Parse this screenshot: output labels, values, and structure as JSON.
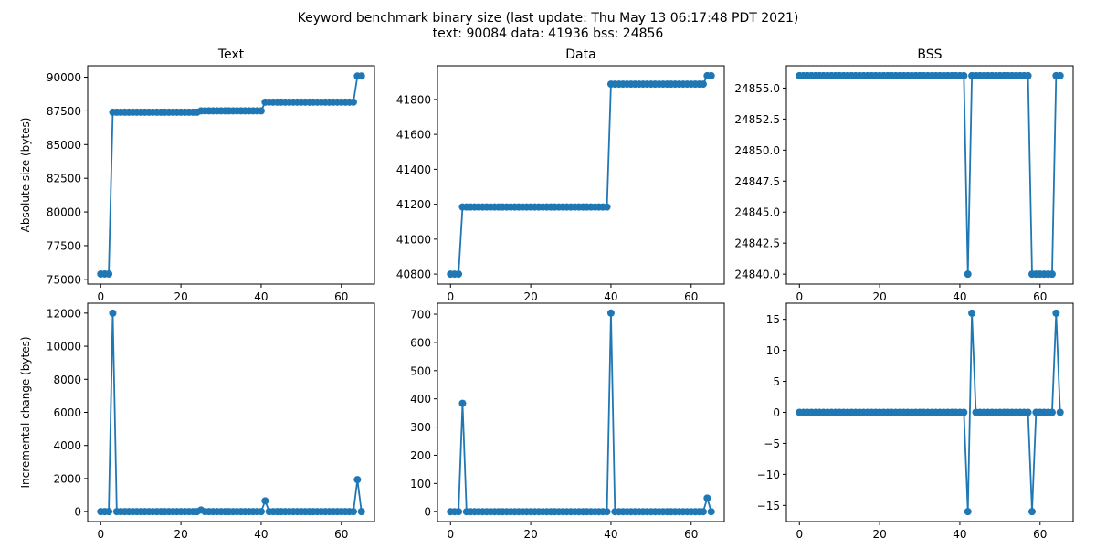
{
  "figure": {
    "title_line1": "Keyword benchmark binary size (last update: Thu May 13 06:17:48 PDT 2021)",
    "title_line2": "text: 90084 data: 41936 bss: 24856",
    "line_color": "#1f77b4"
  },
  "chart_data": [
    {
      "type": "line",
      "title": "Text",
      "xlabel": "",
      "ylabel": "Absolute size (bytes)",
      "xlim": [
        -3.25,
        68.25
      ],
      "ylim": [
        74650,
        90850
      ],
      "xticks": [
        0,
        20,
        40,
        60
      ],
      "yticks": [
        75000,
        77500,
        80000,
        82500,
        85000,
        87500,
        90000
      ],
      "ytick_labels": [
        "75000",
        "77500",
        "80000",
        "82500",
        "85000",
        "87500",
        "90000"
      ],
      "series": [
        {
          "values": [
            75400,
            75400,
            75400,
            87400,
            87400,
            87400,
            87400,
            87400,
            87400,
            87400,
            87400,
            87400,
            87400,
            87400,
            87400,
            87400,
            87400,
            87400,
            87400,
            87400,
            87400,
            87400,
            87400,
            87400,
            87400,
            87500,
            87500,
            87500,
            87500,
            87500,
            87500,
            87500,
            87500,
            87500,
            87500,
            87500,
            87500,
            87500,
            87500,
            87500,
            87500,
            88150,
            88150,
            88150,
            88150,
            88150,
            88150,
            88150,
            88150,
            88150,
            88150,
            88150,
            88150,
            88150,
            88150,
            88150,
            88150,
            88150,
            88150,
            88150,
            88150,
            88150,
            88150,
            88150,
            90084,
            90084
          ]
        }
      ]
    },
    {
      "type": "line",
      "title": "Data",
      "xlabel": "",
      "ylabel": "",
      "xlim": [
        -3.25,
        68.25
      ],
      "ylim": [
        40743,
        41993
      ],
      "xticks": [
        0,
        20,
        40,
        60
      ],
      "yticks": [
        40800,
        41000,
        41200,
        41400,
        41600,
        41800
      ],
      "ytick_labels": [
        "40800",
        "41000",
        "41200",
        "41400",
        "41600",
        "41800"
      ],
      "series": [
        {
          "values": [
            40800,
            40800,
            40800,
            41184,
            41184,
            41184,
            41184,
            41184,
            41184,
            41184,
            41184,
            41184,
            41184,
            41184,
            41184,
            41184,
            41184,
            41184,
            41184,
            41184,
            41184,
            41184,
            41184,
            41184,
            41184,
            41184,
            41184,
            41184,
            41184,
            41184,
            41184,
            41184,
            41184,
            41184,
            41184,
            41184,
            41184,
            41184,
            41184,
            41184,
            41888,
            41888,
            41888,
            41888,
            41888,
            41888,
            41888,
            41888,
            41888,
            41888,
            41888,
            41888,
            41888,
            41888,
            41888,
            41888,
            41888,
            41888,
            41888,
            41888,
            41888,
            41888,
            41888,
            41888,
            41936,
            41936
          ]
        }
      ]
    },
    {
      "type": "line",
      "title": "BSS",
      "xlabel": "",
      "ylabel": "",
      "xlim": [
        -3.25,
        68.25
      ],
      "ylim": [
        24839.2,
        24856.8
      ],
      "xticks": [
        0,
        20,
        40,
        60
      ],
      "yticks": [
        24840.0,
        24842.5,
        24845.0,
        24847.5,
        24850.0,
        24852.5,
        24855.0
      ],
      "ytick_labels": [
        "24840.0",
        "24842.5",
        "24845.0",
        "24847.5",
        "24850.0",
        "24852.5",
        "24855.0"
      ],
      "series": [
        {
          "values": [
            24856,
            24856,
            24856,
            24856,
            24856,
            24856,
            24856,
            24856,
            24856,
            24856,
            24856,
            24856,
            24856,
            24856,
            24856,
            24856,
            24856,
            24856,
            24856,
            24856,
            24856,
            24856,
            24856,
            24856,
            24856,
            24856,
            24856,
            24856,
            24856,
            24856,
            24856,
            24856,
            24856,
            24856,
            24856,
            24856,
            24856,
            24856,
            24856,
            24856,
            24856,
            24856,
            24840,
            24856,
            24856,
            24856,
            24856,
            24856,
            24856,
            24856,
            24856,
            24856,
            24856,
            24856,
            24856,
            24856,
            24856,
            24856,
            24840,
            24840,
            24840,
            24840,
            24840,
            24840,
            24856,
            24856
          ]
        }
      ]
    },
    {
      "type": "line",
      "title": "",
      "xlabel": "",
      "ylabel": "Incremental change (bytes)",
      "xlim": [
        -3.25,
        68.25
      ],
      "ylim": [
        -600,
        12600
      ],
      "xticks": [
        0,
        20,
        40,
        60
      ],
      "yticks": [
        0,
        2000,
        4000,
        6000,
        8000,
        10000,
        12000
      ],
      "ytick_labels": [
        "0",
        "2000",
        "4000",
        "6000",
        "8000",
        "10000",
        "12000"
      ],
      "series": [
        {
          "values": [
            0,
            0,
            0,
            12000,
            0,
            0,
            0,
            0,
            0,
            0,
            0,
            0,
            0,
            0,
            0,
            0,
            0,
            0,
            0,
            0,
            0,
            0,
            0,
            0,
            0,
            100,
            0,
            0,
            0,
            0,
            0,
            0,
            0,
            0,
            0,
            0,
            0,
            0,
            0,
            0,
            0,
            650,
            0,
            0,
            0,
            0,
            0,
            0,
            0,
            0,
            0,
            0,
            0,
            0,
            0,
            0,
            0,
            0,
            0,
            0,
            0,
            0,
            0,
            0,
            1934,
            0
          ]
        }
      ]
    },
    {
      "type": "line",
      "title": "",
      "xlabel": "",
      "ylabel": "",
      "xlim": [
        -3.25,
        68.25
      ],
      "ylim": [
        -35,
        739
      ],
      "xticks": [
        0,
        20,
        40,
        60
      ],
      "yticks": [
        0,
        100,
        200,
        300,
        400,
        500,
        600,
        700
      ],
      "ytick_labels": [
        "0",
        "100",
        "200",
        "300",
        "400",
        "500",
        "600",
        "700"
      ],
      "series": [
        {
          "values": [
            0,
            0,
            0,
            384,
            0,
            0,
            0,
            0,
            0,
            0,
            0,
            0,
            0,
            0,
            0,
            0,
            0,
            0,
            0,
            0,
            0,
            0,
            0,
            0,
            0,
            0,
            0,
            0,
            0,
            0,
            0,
            0,
            0,
            0,
            0,
            0,
            0,
            0,
            0,
            0,
            704,
            0,
            0,
            0,
            0,
            0,
            0,
            0,
            0,
            0,
            0,
            0,
            0,
            0,
            0,
            0,
            0,
            0,
            0,
            0,
            0,
            0,
            0,
            0,
            48,
            0
          ]
        }
      ]
    },
    {
      "type": "line",
      "title": "",
      "xlabel": "",
      "ylabel": "",
      "xlim": [
        -3.25,
        68.25
      ],
      "ylim": [
        -17.6,
        17.6
      ],
      "xticks": [
        0,
        20,
        40,
        60
      ],
      "yticks": [
        -15,
        -10,
        -5,
        0,
        5,
        10,
        15
      ],
      "ytick_labels": [
        "−15",
        "−10",
        "−5",
        "0",
        "5",
        "10",
        "15"
      ],
      "series": [
        {
          "values": [
            0,
            0,
            0,
            0,
            0,
            0,
            0,
            0,
            0,
            0,
            0,
            0,
            0,
            0,
            0,
            0,
            0,
            0,
            0,
            0,
            0,
            0,
            0,
            0,
            0,
            0,
            0,
            0,
            0,
            0,
            0,
            0,
            0,
            0,
            0,
            0,
            0,
            0,
            0,
            0,
            0,
            0,
            -16,
            16,
            0,
            0,
            0,
            0,
            0,
            0,
            0,
            0,
            0,
            0,
            0,
            0,
            0,
            0,
            -16,
            0,
            0,
            0,
            0,
            0,
            16,
            0
          ]
        }
      ]
    }
  ]
}
